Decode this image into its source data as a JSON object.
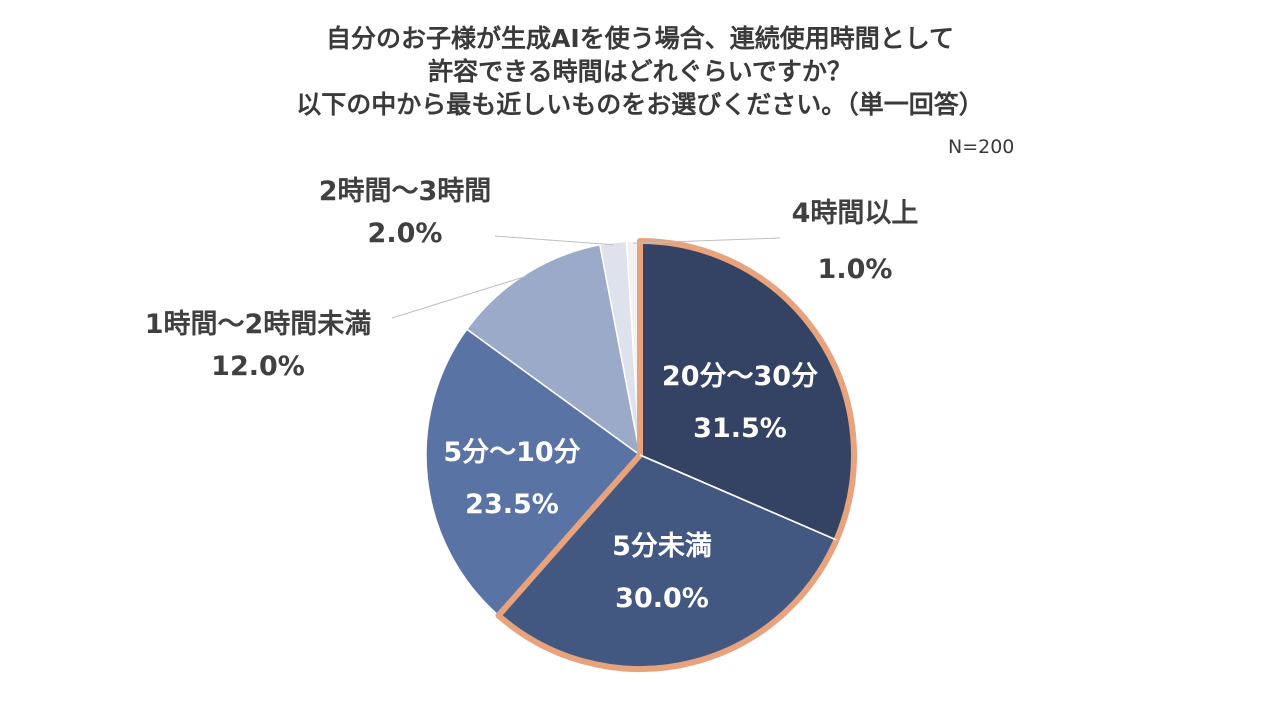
{
  "title_lines": [
    "自分のお子様が生成AIを使う場合、連続使用時間として",
    "許容できる時間はどれぐらいですか？",
    "以下の中から最も近しいものをお選びください。（単一回答）"
  ],
  "n_label": "N=200",
  "chart_data": {
    "type": "pie",
    "categories": [
      "20分〜30分",
      "5分未満",
      "5分〜10分",
      "1時間〜2時間未満",
      "2時間〜3時間",
      "4時間以上"
    ],
    "values": [
      31.5,
      30.0,
      23.5,
      12.0,
      2.0,
      1.0
    ],
    "value_labels": [
      "31.5%",
      "30.0%",
      "23.5%",
      "12.0%",
      "2.0%",
      "1.0%"
    ],
    "colors": [
      "#344263",
      "#435881",
      "#5a73a5",
      "#9aaac8",
      "#dde2ed",
      "#f2f2f2"
    ],
    "highlighted": [
      "20分〜30分",
      "5分未満"
    ],
    "highlight_color": "#e8a27c"
  }
}
